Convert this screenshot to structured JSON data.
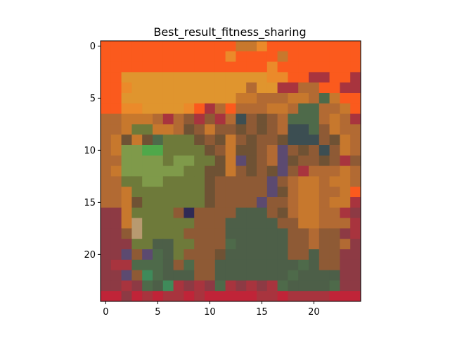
{
  "chart_data": {
    "type": "heatmap",
    "title": "Best_result_fitness_sharing",
    "xlabel": "",
    "ylabel": "",
    "rows": 25,
    "cols": 25,
    "xlim": [
      -0.5,
      24.5
    ],
    "ylim": [
      24.5,
      -0.5
    ],
    "grid": false,
    "x_ticks": [
      0,
      5,
      10,
      15,
      20
    ],
    "y_ticks": [
      0,
      5,
      10,
      15,
      20
    ],
    "palette": {
      "O": "#fb5a1d",
      "A": "#eb8a2a",
      "Y": "#e0952e",
      "T": "#c7782d",
      "C": "#b26a33",
      "B": "#8e5a35",
      "D": "#6f5234",
      "G": "#6e7a3a",
      "L": "#7f9a4a",
      "E": "#4fa84a",
      "K": "#4e6a4a",
      "S": "#4d5f48",
      "N": "#3c4e52",
      "P": "#5c4a70",
      "V": "#2f2a55",
      "R": "#a8343e",
      "M": "#8d3a44",
      "Q": "#c02438",
      "H": "#b89a70",
      "I": "#3f8a5a"
    },
    "rows_encoded": [
      "OOOOOOOOOOOOOTTAOOOOOOOOO",
      "OOOOOOOOOOOOAOOOOTOOOOOOO",
      "OOOOOOOOOOOOOOOOAOOOOOOOO",
      "OOYYYYYYYYYYYYYYAAOORROOR",
      "OOAYYYYYYYYYYYCYYRRCCOORR",
      "OOYYYYYYYYYYYTTCCCTTCKTOO",
      "OOAAYYYYAORCOCCCTTCKKCCTO",
      "CCTTTCRCBRBRCNBDBCKKKCTCR",
      "CCTGGTTCDBTBBDBDBCNNKBTCC",
      "CTDTDKGGGDBDTBDBBDNNNBDTC",
      "CTLLEEGGGGDBTDDBCPBDBNBTC",
      "CCLLLLGLLGGDTPDBCPDBBDBRB",
      "CTLLLLLLGGDDTBDBDPBRCCCTC",
      "CCGGLLGGGGDBBBBBPBCTTCTTC",
      "CCTGGGGGGGDBBBBBPDCTTCCTO",
      "CCTDGGGGGGDBBBBPBBCTTCTTR",
      "MMTGGGGBVBBBBSSSBDCTTCCRM",
      "MMTHGGGGGBBBSSSSSBBTTCCCR",
      "MMBHGGGGBBBBSSSSSSBBCBBMR",
      "MMMGGSSGGBBBKSSSSSBBCBBCM",
      "MMPBPKSGBBBDSSSSSSBBSBBMM",
      "MRRKKKSBKBBSSSSSSSSKSBBMM",
      "MMPBIKSSSBBSSSSSSSKSSSSMM",
      "MMRMKSIRMRMKRMRMRKSSSSKMM",
      "QQMQRQRRQRQQQQQRRQRRRRQQQ"
    ]
  }
}
